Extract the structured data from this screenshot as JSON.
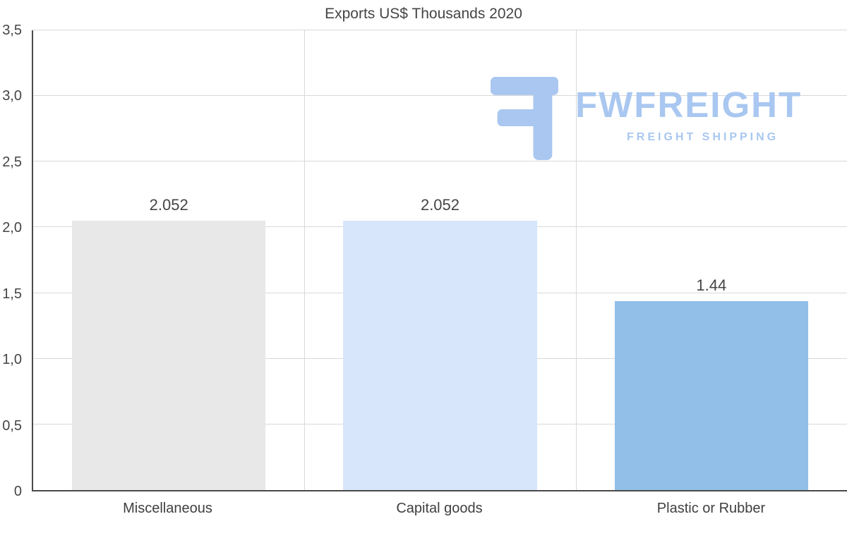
{
  "chart_data": {
    "type": "bar",
    "title": "Exports US$ Thousands 2020",
    "categories": [
      "Miscellaneous",
      "Capital goods",
      "Plastic or Rubber"
    ],
    "values": [
      2.052,
      2.052,
      1.44
    ],
    "value_labels": [
      "2.052",
      "2.052",
      "1.44"
    ],
    "bar_colors": [
      "#e8e8e8",
      "#d7e6fa",
      "#92bfe8"
    ],
    "xlabel": "",
    "ylabel": "",
    "ylim": [
      0,
      3.5
    ],
    "ytick_values": [
      3.5,
      3.0,
      2.5,
      2.0,
      1.5,
      1.0,
      0.5,
      0
    ],
    "ytick_labels": [
      "3,5",
      "3,0",
      "2,5",
      "2,0",
      "1,5",
      "1,0",
      "0,5",
      "0"
    ],
    "grid": true,
    "legend": "none"
  },
  "watermark": {
    "brand": "FWFREIGHT",
    "tagline": "FREIGHT SHIPPING",
    "color": "#a9c7f0"
  }
}
